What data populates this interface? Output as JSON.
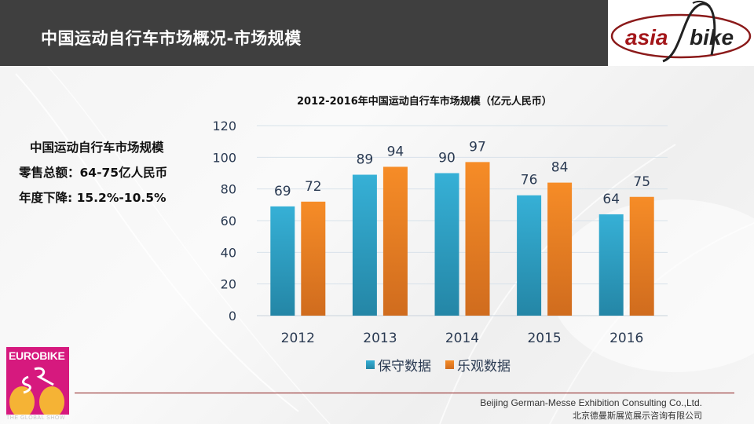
{
  "header": {
    "title": "中国运动自行车市场概况-市场规模"
  },
  "logos": {
    "asiabike_left": "asia",
    "asiabike_right": "bike",
    "eurobike": "EUROBIKE",
    "eurobike_tagline": "THE GLOBAL SHOW"
  },
  "summary": {
    "line1": "中国运动自行车市场规模",
    "line2": "零售总额：64-75亿人民币",
    "line3": "年度下降: 15.2%-10.5%"
  },
  "chart_data": {
    "type": "bar",
    "title": "2012-2016年中国运动自行车市场规模（亿元人民币）",
    "xlabel": "",
    "ylabel": "",
    "categories": [
      "2012",
      "2013",
      "2014",
      "2015",
      "2016"
    ],
    "series": [
      {
        "name": "保守数据",
        "values": [
          69,
          89,
          90,
          76,
          64
        ],
        "color": "#2f9fc4"
      },
      {
        "name": "乐观数据",
        "values": [
          72,
          94,
          97,
          84,
          75
        ],
        "color": "#f0821e"
      }
    ],
    "ylim": [
      0,
      120
    ],
    "yticks": [
      0,
      20,
      40,
      60,
      80,
      100,
      120
    ],
    "grid": true,
    "legend": "bottom",
    "data_labels": true
  },
  "footer": {
    "company_en": "Beijing German-Messe Exhibition Consulting Co.,Ltd.",
    "company_cn": "北京德曼斯展览展示咨询有限公司"
  },
  "colors": {
    "header_bg": "#3f3f3f",
    "footer_line": "#8b1a1a",
    "eurobike_pink": "#d6197e"
  }
}
